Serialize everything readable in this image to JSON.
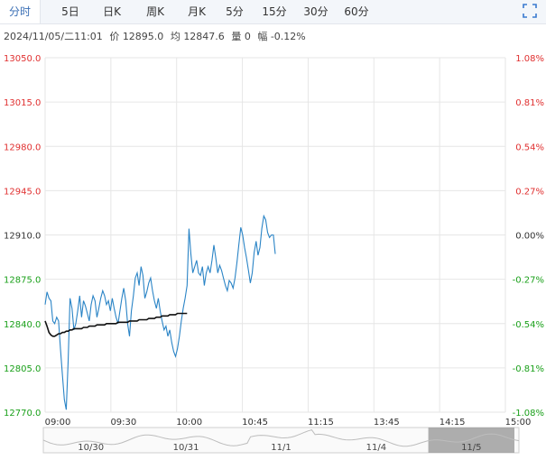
{
  "tabs": [
    "分时",
    "5日",
    "日K",
    "周K",
    "月K",
    "5分",
    "15分",
    "30分",
    "60分"
  ],
  "active_tab": 0,
  "expand_icon": "fullscreen-icon",
  "info": {
    "datetime": "2024/11/05/二11:01",
    "price_label": "价",
    "price": "12895.0",
    "avg_label": "均",
    "avg": "12847.6",
    "vol_label": "量",
    "vol": "0",
    "chg_label": "幅",
    "chg": "-0.12%"
  },
  "colors": {
    "up": "#e03030",
    "down": "#1aa01a",
    "neutral": "#333333",
    "price": "#2a84c6",
    "avg": "#111111",
    "grid": "#e6e6e6"
  },
  "chart_data": {
    "type": "line",
    "ylim": [
      12770,
      13050
    ],
    "y_ticks": [
      {
        "value": 13050,
        "label": "13050.0",
        "pct": "1.08%",
        "tone": "up"
      },
      {
        "value": 13015,
        "label": "13015.0",
        "pct": "0.81%",
        "tone": "up"
      },
      {
        "value": 12980,
        "label": "12980.0",
        "pct": "0.54%",
        "tone": "up"
      },
      {
        "value": 12945,
        "label": "12945.0",
        "pct": "0.27%",
        "tone": "up"
      },
      {
        "value": 12910,
        "label": "12910.0",
        "pct": "0.00%",
        "tone": "neutral"
      },
      {
        "value": 12875,
        "label": "12875.0",
        "pct": "-0.27%",
        "tone": "down"
      },
      {
        "value": 12840,
        "label": "12840.0",
        "pct": "-0.54%",
        "tone": "down"
      },
      {
        "value": 12805,
        "label": "12805.0",
        "pct": "-0.81%",
        "tone": "down"
      },
      {
        "value": 12770,
        "label": "12770.0",
        "pct": "-1.08%",
        "tone": "down"
      }
    ],
    "x_ticks": [
      "09:00",
      "09:30",
      "10:00",
      "10:45",
      "11:15",
      "13:45",
      "14:15",
      "15:00"
    ],
    "session_minutes": 240,
    "grid": true,
    "series": [
      {
        "role": "price",
        "values": [
          12855,
          12865,
          12860,
          12858,
          12842,
          12840,
          12845,
          12842,
          12820,
          12800,
          12780,
          12772,
          12810,
          12860,
          12852,
          12835,
          12840,
          12850,
          12862,
          12845,
          12858,
          12854,
          12848,
          12842,
          12855,
          12862,
          12858,
          12845,
          12852,
          12860,
          12866,
          12862,
          12855,
          12858,
          12850,
          12860,
          12852,
          12845,
          12840,
          12850,
          12860,
          12868,
          12858,
          12840,
          12830,
          12850,
          12862,
          12876,
          12880,
          12870,
          12885,
          12878,
          12860,
          12865,
          12872,
          12876,
          12866,
          12858,
          12852,
          12860,
          12850,
          12842,
          12835,
          12838,
          12830,
          12835,
          12825,
          12818,
          12814,
          12820,
          12830,
          12842,
          12852,
          12860,
          12870,
          12915,
          12895,
          12880,
          12885,
          12890,
          12880,
          12878,
          12885,
          12870,
          12880,
          12885,
          12880,
          12890,
          12902,
          12892,
          12880,
          12886,
          12882,
          12876,
          12870,
          12866,
          12874,
          12872,
          12868,
          12876,
          12888,
          12902,
          12916,
          12910,
          12900,
          12892,
          12882,
          12872,
          12880,
          12896,
          12905,
          12894,
          12900,
          12915,
          12925,
          12922,
          12912,
          12908,
          12910,
          12910,
          12895
        ]
      },
      {
        "role": "average",
        "values": [
          12842,
          12838,
          12833,
          12831,
          12830,
          12830,
          12831,
          12832,
          12832,
          12833,
          12833,
          12834,
          12834,
          12835,
          12835,
          12836,
          12836,
          12836,
          12836,
          12836,
          12837,
          12837,
          12837,
          12838,
          12838,
          12838,
          12838,
          12839,
          12839,
          12839,
          12839,
          12839,
          12840,
          12840,
          12840,
          12840,
          12840,
          12840,
          12841,
          12841,
          12841,
          12841,
          12841,
          12841,
          12842,
          12842,
          12842,
          12842,
          12842,
          12843,
          12843,
          12843,
          12843,
          12843,
          12844,
          12844,
          12844,
          12844,
          12845,
          12845,
          12845,
          12846,
          12846,
          12846,
          12846,
          12847,
          12847,
          12847,
          12847,
          12848,
          12848,
          12848,
          12848,
          12848,
          12848
        ]
      }
    ]
  },
  "navigator": {
    "dates": [
      "10/30",
      "10/31",
      "11/1",
      "11/4",
      "11/5"
    ],
    "selected": 4
  }
}
